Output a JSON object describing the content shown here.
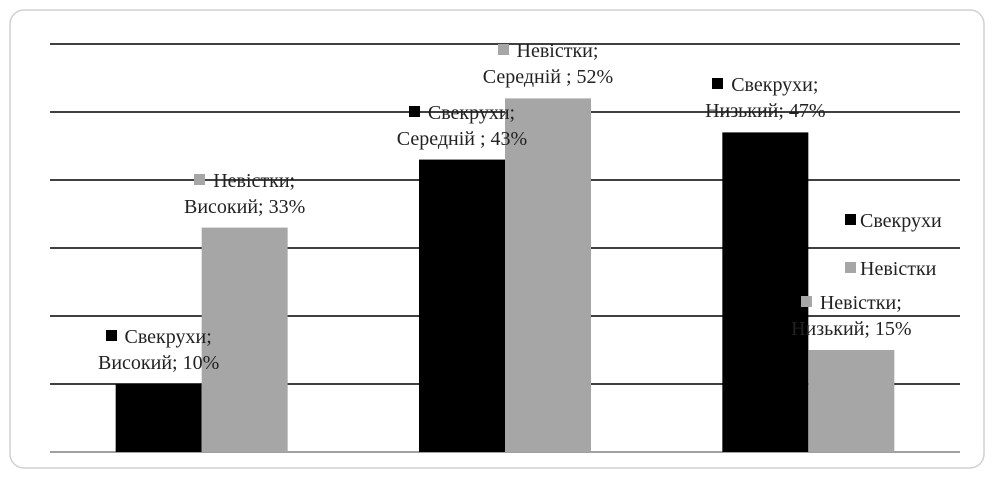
{
  "chart_data": {
    "type": "bar",
    "series": [
      {
        "name": "Свекрухи",
        "color": "#000000",
        "values": [
          10,
          43,
          47
        ],
        "value_labels": [
          "Свекрухи; Високий; 10%",
          "Свекрухи; Середній ; 43%",
          "Свекрухи; Низький; 47%"
        ]
      },
      {
        "name": "Невістки",
        "color": "#a6a6a6",
        "values": [
          33,
          52,
          15
        ],
        "value_labels": [
          "Невістки; Високий; 33%",
          "Невістки; Середній ; 52%",
          "Невістки; Низький; 15%"
        ]
      }
    ],
    "ylim": [
      0,
      60
    ],
    "yticks": [
      0,
      10,
      20,
      30,
      40,
      50,
      60
    ],
    "grid": true,
    "legend": "right"
  }
}
